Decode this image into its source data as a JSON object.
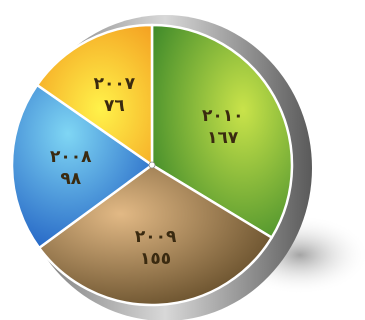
{
  "chart_data": {
    "type": "pie",
    "title": "",
    "categories": [
      "٢٠١٠",
      "٢٠٠٩",
      "٢٠٠٨",
      "٢٠٠٧"
    ],
    "values": [
      167,
      155,
      98,
      76
    ],
    "value_labels": [
      "١٦٧",
      "١٥٥",
      "٩٨",
      "٧٦"
    ],
    "colors": [
      "#6aa83a",
      "#a9875a",
      "#3f9ad6",
      "#f4b12e"
    ],
    "legend": "none",
    "start": "top",
    "direction": "clockwise"
  }
}
